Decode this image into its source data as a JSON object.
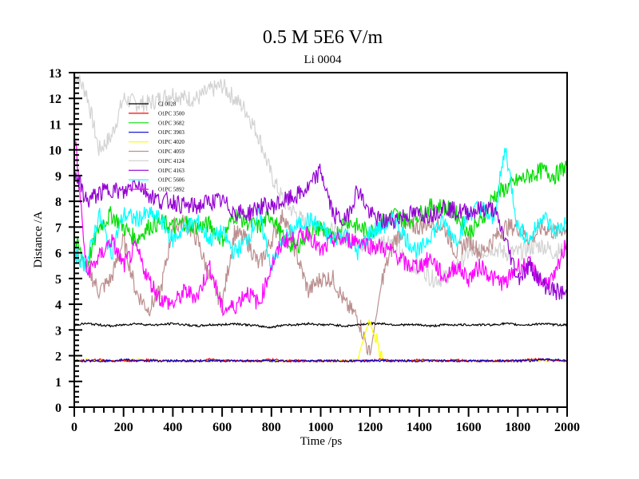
{
  "chart_data": {
    "type": "line",
    "title": "0.5 M 5E6 V/m",
    "subtitle": "Li 0004",
    "xlabel": "Time /ps",
    "ylabel": "Distance /A",
    "xlim": [
      0,
      2000
    ],
    "ylim": [
      0,
      13
    ],
    "x_ticks": [
      0,
      200,
      400,
      600,
      800,
      1000,
      1200,
      1400,
      1600,
      1800,
      2000
    ],
    "y_ticks": [
      0,
      1,
      2,
      3,
      4,
      5,
      6,
      7,
      8,
      9,
      10,
      11,
      12,
      13
    ],
    "x_minor_step": 40,
    "y_minor_step": 0.2,
    "grid": false,
    "legend_position": "top-left",
    "x": [
      0,
      50,
      100,
      150,
      200,
      250,
      300,
      350,
      400,
      450,
      500,
      550,
      600,
      650,
      700,
      750,
      800,
      850,
      900,
      950,
      1000,
      1050,
      1100,
      1150,
      1200,
      1250,
      1300,
      1350,
      1400,
      1450,
      1500,
      1550,
      1600,
      1650,
      1700,
      1750,
      1800,
      1850,
      1900,
      1950,
      2000
    ],
    "series": [
      {
        "name": "Cl 0028",
        "color": "#000000",
        "values": [
          3.2,
          3.25,
          3.2,
          3.15,
          3.2,
          3.25,
          3.2,
          3.2,
          3.25,
          3.2,
          3.15,
          3.2,
          3.2,
          3.25,
          3.2,
          3.15,
          3.1,
          3.2,
          3.2,
          3.25,
          3.2,
          3.2,
          3.15,
          3.2,
          3.25,
          3.25,
          3.2,
          3.2,
          3.2,
          3.15,
          3.2,
          3.2,
          3.2,
          3.2,
          3.2,
          3.25,
          3.2,
          3.2,
          3.25,
          3.2,
          3.2
        ]
      },
      {
        "name": "O1PC 3500",
        "color": "#ff0000",
        "values": [
          1.8,
          1.8,
          1.85,
          1.8,
          1.8,
          1.8,
          1.85,
          1.8,
          1.8,
          1.8,
          1.8,
          1.85,
          1.8,
          1.8,
          1.8,
          1.8,
          1.85,
          1.8,
          1.8,
          1.8,
          1.8,
          1.8,
          1.8,
          1.8,
          1.8,
          1.85,
          1.8,
          1.8,
          1.85,
          1.8,
          1.8,
          1.85,
          1.8,
          1.8,
          1.8,
          1.8,
          1.8,
          1.85,
          1.85,
          1.8,
          1.8
        ]
      },
      {
        "name": "O1PC 3682",
        "color": "#00dd00",
        "values": [
          6.5,
          5.5,
          7.0,
          7.5,
          7.0,
          6.5,
          7.0,
          7.2,
          7.0,
          7.2,
          7.0,
          7.1,
          6.5,
          7.5,
          7.2,
          7.0,
          7.5,
          6.5,
          6.2,
          6.8,
          7.0,
          6.5,
          7.3,
          7.0,
          6.8,
          7.2,
          7.5,
          7.2,
          7.5,
          7.8,
          7.8,
          7.5,
          6.8,
          7.2,
          8.2,
          8.5,
          8.8,
          9.0,
          9.2,
          9.0,
          9.4
        ]
      },
      {
        "name": "O1PC 3903",
        "color": "#0000cc",
        "values": [
          1.8,
          1.8,
          1.8,
          1.8,
          1.85,
          1.8,
          1.8,
          1.8,
          1.8,
          1.8,
          1.8,
          1.8,
          1.8,
          1.8,
          1.8,
          1.8,
          1.8,
          1.8,
          1.8,
          1.8,
          1.8,
          1.8,
          1.8,
          1.8,
          1.8,
          1.8,
          1.8,
          1.8,
          1.8,
          1.8,
          1.8,
          1.8,
          1.8,
          1.8,
          1.8,
          1.8,
          1.8,
          1.8,
          1.85,
          1.85,
          1.8
        ]
      },
      {
        "name": "O1PC 4020",
        "color": "#ffff00",
        "values": [
          1.8,
          1.85,
          1.8,
          1.8,
          1.8,
          1.85,
          1.8,
          1.8,
          1.8,
          1.8,
          1.8,
          1.8,
          1.8,
          1.8,
          1.8,
          1.8,
          1.8,
          1.8,
          1.8,
          1.8,
          1.8,
          1.8,
          1.8,
          1.85,
          3.5,
          1.8,
          1.8,
          1.8,
          1.8,
          1.8,
          1.8,
          1.8,
          1.8,
          1.8,
          1.8,
          1.8,
          1.8,
          1.8,
          1.8,
          1.8,
          1.8
        ]
      },
      {
        "name": "O1PC 4059",
        "color": "#bc8f8f",
        "values": [
          6.0,
          5.5,
          4.5,
          5.0,
          6.5,
          4.5,
          3.8,
          4.5,
          7.0,
          7.2,
          6.5,
          5.0,
          4.0,
          6.8,
          6.5,
          5.5,
          6.5,
          7.5,
          6.0,
          4.5,
          5.0,
          5.0,
          4.0,
          3.5,
          2.0,
          5.0,
          6.5,
          7.0,
          7.0,
          7.2,
          7.0,
          6.0,
          6.5,
          6.0,
          6.5,
          7.0,
          7.0,
          6.5,
          7.0,
          6.8,
          7.0
        ]
      },
      {
        "name": "O1PC 4124",
        "color": "#d3d3d3",
        "values": [
          13.0,
          12.2,
          10.0,
          10.5,
          12.0,
          11.8,
          11.8,
          12.0,
          12.2,
          12.0,
          12.0,
          12.3,
          12.5,
          12.0,
          11.5,
          10.5,
          9.0,
          8.0,
          7.5,
          7.0,
          7.0,
          6.8,
          6.5,
          6.5,
          6.0,
          6.5,
          6.5,
          5.5,
          5.5,
          5.0,
          5.0,
          5.5,
          6.0,
          6.0,
          6.2,
          6.0,
          6.0,
          6.2,
          6.3,
          6.0,
          6.2
        ]
      },
      {
        "name": "O1PC 4163",
        "color": "#9400d3",
        "values": [
          9.2,
          8.0,
          8.3,
          8.5,
          8.3,
          8.8,
          8.3,
          8.0,
          8.0,
          7.8,
          7.8,
          8.0,
          8.0,
          7.6,
          7.5,
          7.8,
          7.8,
          8.0,
          8.2,
          8.5,
          9.2,
          7.5,
          7.2,
          8.5,
          7.5,
          7.2,
          7.3,
          7.5,
          7.5,
          7.5,
          7.8,
          7.6,
          7.6,
          7.7,
          7.7,
          6.5,
          5.0,
          5.5,
          4.8,
          4.5,
          4.4
        ]
      },
      {
        "name": "O1PC 5606",
        "color": "#00ffff",
        "values": [
          6.0,
          5.5,
          7.5,
          6.0,
          7.5,
          7.3,
          7.5,
          7.3,
          6.5,
          7.0,
          7.2,
          6.5,
          6.8,
          6.0,
          6.5,
          7.5,
          5.5,
          6.5,
          7.0,
          7.3,
          7.0,
          6.5,
          6.8,
          6.0,
          6.8,
          7.0,
          7.3,
          6.5,
          6.0,
          6.8,
          7.2,
          6.5,
          7.5,
          7.8,
          7.2,
          10.1,
          7.0,
          6.5,
          7.5,
          6.8,
          7.2
        ]
      },
      {
        "name": "O1PC 5892",
        "color": "#ff00ff",
        "values": [
          10.8,
          5.2,
          5.8,
          6.5,
          5.5,
          6.2,
          5.0,
          4.2,
          4.0,
          4.5,
          4.3,
          5.5,
          3.8,
          3.9,
          4.5,
          4.0,
          5.5,
          6.5,
          6.5,
          6.8,
          6.0,
          6.5,
          6.5,
          6.5,
          6.3,
          6.2,
          6.0,
          5.5,
          5.5,
          5.8,
          5.0,
          5.5,
          5.0,
          5.5,
          5.0,
          4.8,
          5.5,
          5.5,
          4.8,
          5.0,
          6.5
        ]
      }
    ]
  }
}
